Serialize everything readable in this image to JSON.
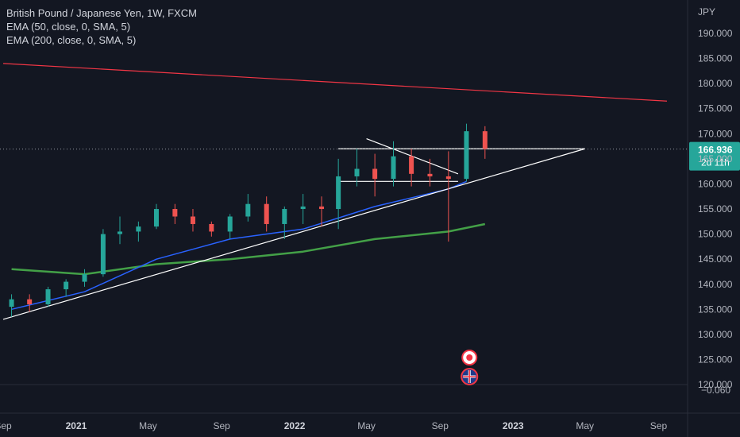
{
  "legend": {
    "title": "British Pound / Japanese Yen, 1W, FXCM",
    "ema50": "EMA (50, close, 0, SMA, 5)",
    "ema200": "EMA (200, close, 0, SMA, 5)"
  },
  "price_axis": {
    "currency": "JPY",
    "ticks": [
      "190.000",
      "185.000",
      "180.000",
      "175.000",
      "170.000",
      "165.000",
      "160.000",
      "155.000",
      "150.000",
      "145.000",
      "140.000",
      "135.000",
      "130.000",
      "125.000",
      "120.000"
    ],
    "sub_pane_value": "−0.060"
  },
  "current_price": {
    "value": "166.936",
    "countdown": "2d 11h",
    "color": "#26a69a"
  },
  "time_axis": {
    "labels": [
      "Sep",
      "2021",
      "May",
      "Sep",
      "2022",
      "May",
      "Sep",
      "2023",
      "May",
      "Sep"
    ],
    "bold": [
      "2021",
      "2022",
      "2023"
    ]
  },
  "colors": {
    "background": "#131722",
    "up_candle": "#26a69a",
    "down_candle": "#ef5350",
    "ema50": "#2962ff",
    "ema200": "#43a047",
    "red_trendline": "#f23645",
    "drawing_lines": "#ffffff"
  },
  "event_icons": [
    "target-event-icon",
    "uk-flag-event-icon"
  ],
  "chart_data": {
    "type": "candlestick",
    "symbol": "British Pound / Japanese Yen",
    "interval": "1W",
    "source": "FXCM",
    "y_axis_unit": "JPY",
    "ylim": [
      119,
      193
    ],
    "x_range": [
      "2020-09-01",
      "2023-09-15"
    ],
    "last_price": 166.936,
    "candles_monthly_approx": [
      {
        "t": "2020-09",
        "o": 135.5,
        "h": 138.0,
        "l": 133.5,
        "c": 137.0
      },
      {
        "t": "2020-10",
        "o": 137.0,
        "h": 138.0,
        "l": 134.5,
        "c": 136.0
      },
      {
        "t": "2020-11",
        "o": 136.0,
        "h": 139.5,
        "l": 135.5,
        "c": 139.0
      },
      {
        "t": "2020-12",
        "o": 139.0,
        "h": 141.0,
        "l": 137.5,
        "c": 140.5
      },
      {
        "t": "2021-01",
        "o": 140.5,
        "h": 143.0,
        "l": 139.5,
        "c": 142.0
      },
      {
        "t": "2021-02",
        "o": 142.0,
        "h": 151.0,
        "l": 141.5,
        "c": 150.0
      },
      {
        "t": "2021-03",
        "o": 150.0,
        "h": 153.5,
        "l": 148.0,
        "c": 150.5
      },
      {
        "t": "2021-04",
        "o": 150.5,
        "h": 152.5,
        "l": 148.5,
        "c": 151.5
      },
      {
        "t": "2021-05",
        "o": 151.5,
        "h": 156.0,
        "l": 151.0,
        "c": 155.0
      },
      {
        "t": "2021-06",
        "o": 155.0,
        "h": 156.0,
        "l": 152.0,
        "c": 153.5
      },
      {
        "t": "2021-07",
        "o": 153.5,
        "h": 155.0,
        "l": 150.5,
        "c": 152.0
      },
      {
        "t": "2021-08",
        "o": 152.0,
        "h": 152.5,
        "l": 149.5,
        "c": 150.5
      },
      {
        "t": "2021-09",
        "o": 150.5,
        "h": 154.0,
        "l": 149.0,
        "c": 153.5
      },
      {
        "t": "2021-10",
        "o": 153.5,
        "h": 158.0,
        "l": 152.5,
        "c": 156.0
      },
      {
        "t": "2021-11",
        "o": 156.0,
        "h": 157.5,
        "l": 150.5,
        "c": 152.0
      },
      {
        "t": "2021-12",
        "o": 152.0,
        "h": 155.5,
        "l": 149.0,
        "c": 155.0
      },
      {
        "t": "2022-01",
        "o": 155.0,
        "h": 158.0,
        "l": 152.0,
        "c": 155.5
      },
      {
        "t": "2022-02",
        "o": 155.5,
        "h": 157.5,
        "l": 151.5,
        "c": 155.0
      },
      {
        "t": "2022-03",
        "o": 155.0,
        "h": 165.0,
        "l": 151.0,
        "c": 161.5
      },
      {
        "t": "2022-04",
        "o": 161.5,
        "h": 167.0,
        "l": 159.5,
        "c": 163.0
      },
      {
        "t": "2022-05",
        "o": 163.0,
        "h": 166.0,
        "l": 157.5,
        "c": 161.0
      },
      {
        "t": "2022-06",
        "o": 161.0,
        "h": 168.5,
        "l": 159.5,
        "c": 165.5
      },
      {
        "t": "2022-07",
        "o": 165.5,
        "h": 167.0,
        "l": 159.5,
        "c": 162.0
      },
      {
        "t": "2022-08",
        "o": 162.0,
        "h": 165.0,
        "l": 159.5,
        "c": 161.5
      },
      {
        "t": "2022-09",
        "o": 161.5,
        "h": 166.5,
        "l": 148.5,
        "c": 161.0
      },
      {
        "t": "2022-10",
        "o": 161.0,
        "h": 172.0,
        "l": 160.5,
        "c": 170.5
      },
      {
        "t": "2022-11",
        "o": 170.5,
        "h": 171.5,
        "l": 165.0,
        "c": 166.936
      }
    ],
    "ema50": [
      {
        "t": "2020-09",
        "v": 135.0
      },
      {
        "t": "2021-01",
        "v": 138.5
      },
      {
        "t": "2021-05",
        "v": 145.0
      },
      {
        "t": "2021-09",
        "v": 149.0
      },
      {
        "t": "2022-01",
        "v": 151.0
      },
      {
        "t": "2022-05",
        "v": 155.5
      },
      {
        "t": "2022-09",
        "v": 159.0
      },
      {
        "t": "2022-10",
        "v": 160.5
      }
    ],
    "ema200": [
      {
        "t": "2020-09",
        "v": 143.0
      },
      {
        "t": "2021-01",
        "v": 142.0
      },
      {
        "t": "2021-05",
        "v": 144.0
      },
      {
        "t": "2021-09",
        "v": 145.0
      },
      {
        "t": "2022-01",
        "v": 146.5
      },
      {
        "t": "2022-05",
        "v": 149.0
      },
      {
        "t": "2022-09",
        "v": 150.5
      },
      {
        "t": "2022-11",
        "v": 152.0
      }
    ],
    "drawings": [
      {
        "name": "red-long-trendline",
        "color": "#f23645",
        "from": {
          "t": "2020-09-01",
          "v": 184.0
        },
        "to": {
          "t": "2023-09-15",
          "v": 176.5
        }
      },
      {
        "name": "ascending-support-line",
        "color": "#ffffff",
        "from": {
          "t": "2020-09-01",
          "v": 133.0
        },
        "to": {
          "t": "2023-05-01",
          "v": 167.0
        }
      },
      {
        "name": "horizontal-resistance-line",
        "color": "#ffffff",
        "from": {
          "t": "2022-03-15",
          "v": 167.0
        },
        "to": {
          "t": "2023-05-01",
          "v": 167.0
        }
      },
      {
        "name": "horizontal-support-line",
        "color": "#ffffff",
        "from": {
          "t": "2022-03-15",
          "v": 160.5
        },
        "to": {
          "t": "2022-10-01",
          "v": 160.5
        }
      },
      {
        "name": "descending-wedge-line",
        "color": "#ffffff",
        "from": {
          "t": "2022-05-01",
          "v": 169.0
        },
        "to": {
          "t": "2022-10-01",
          "v": 162.0
        }
      }
    ]
  }
}
